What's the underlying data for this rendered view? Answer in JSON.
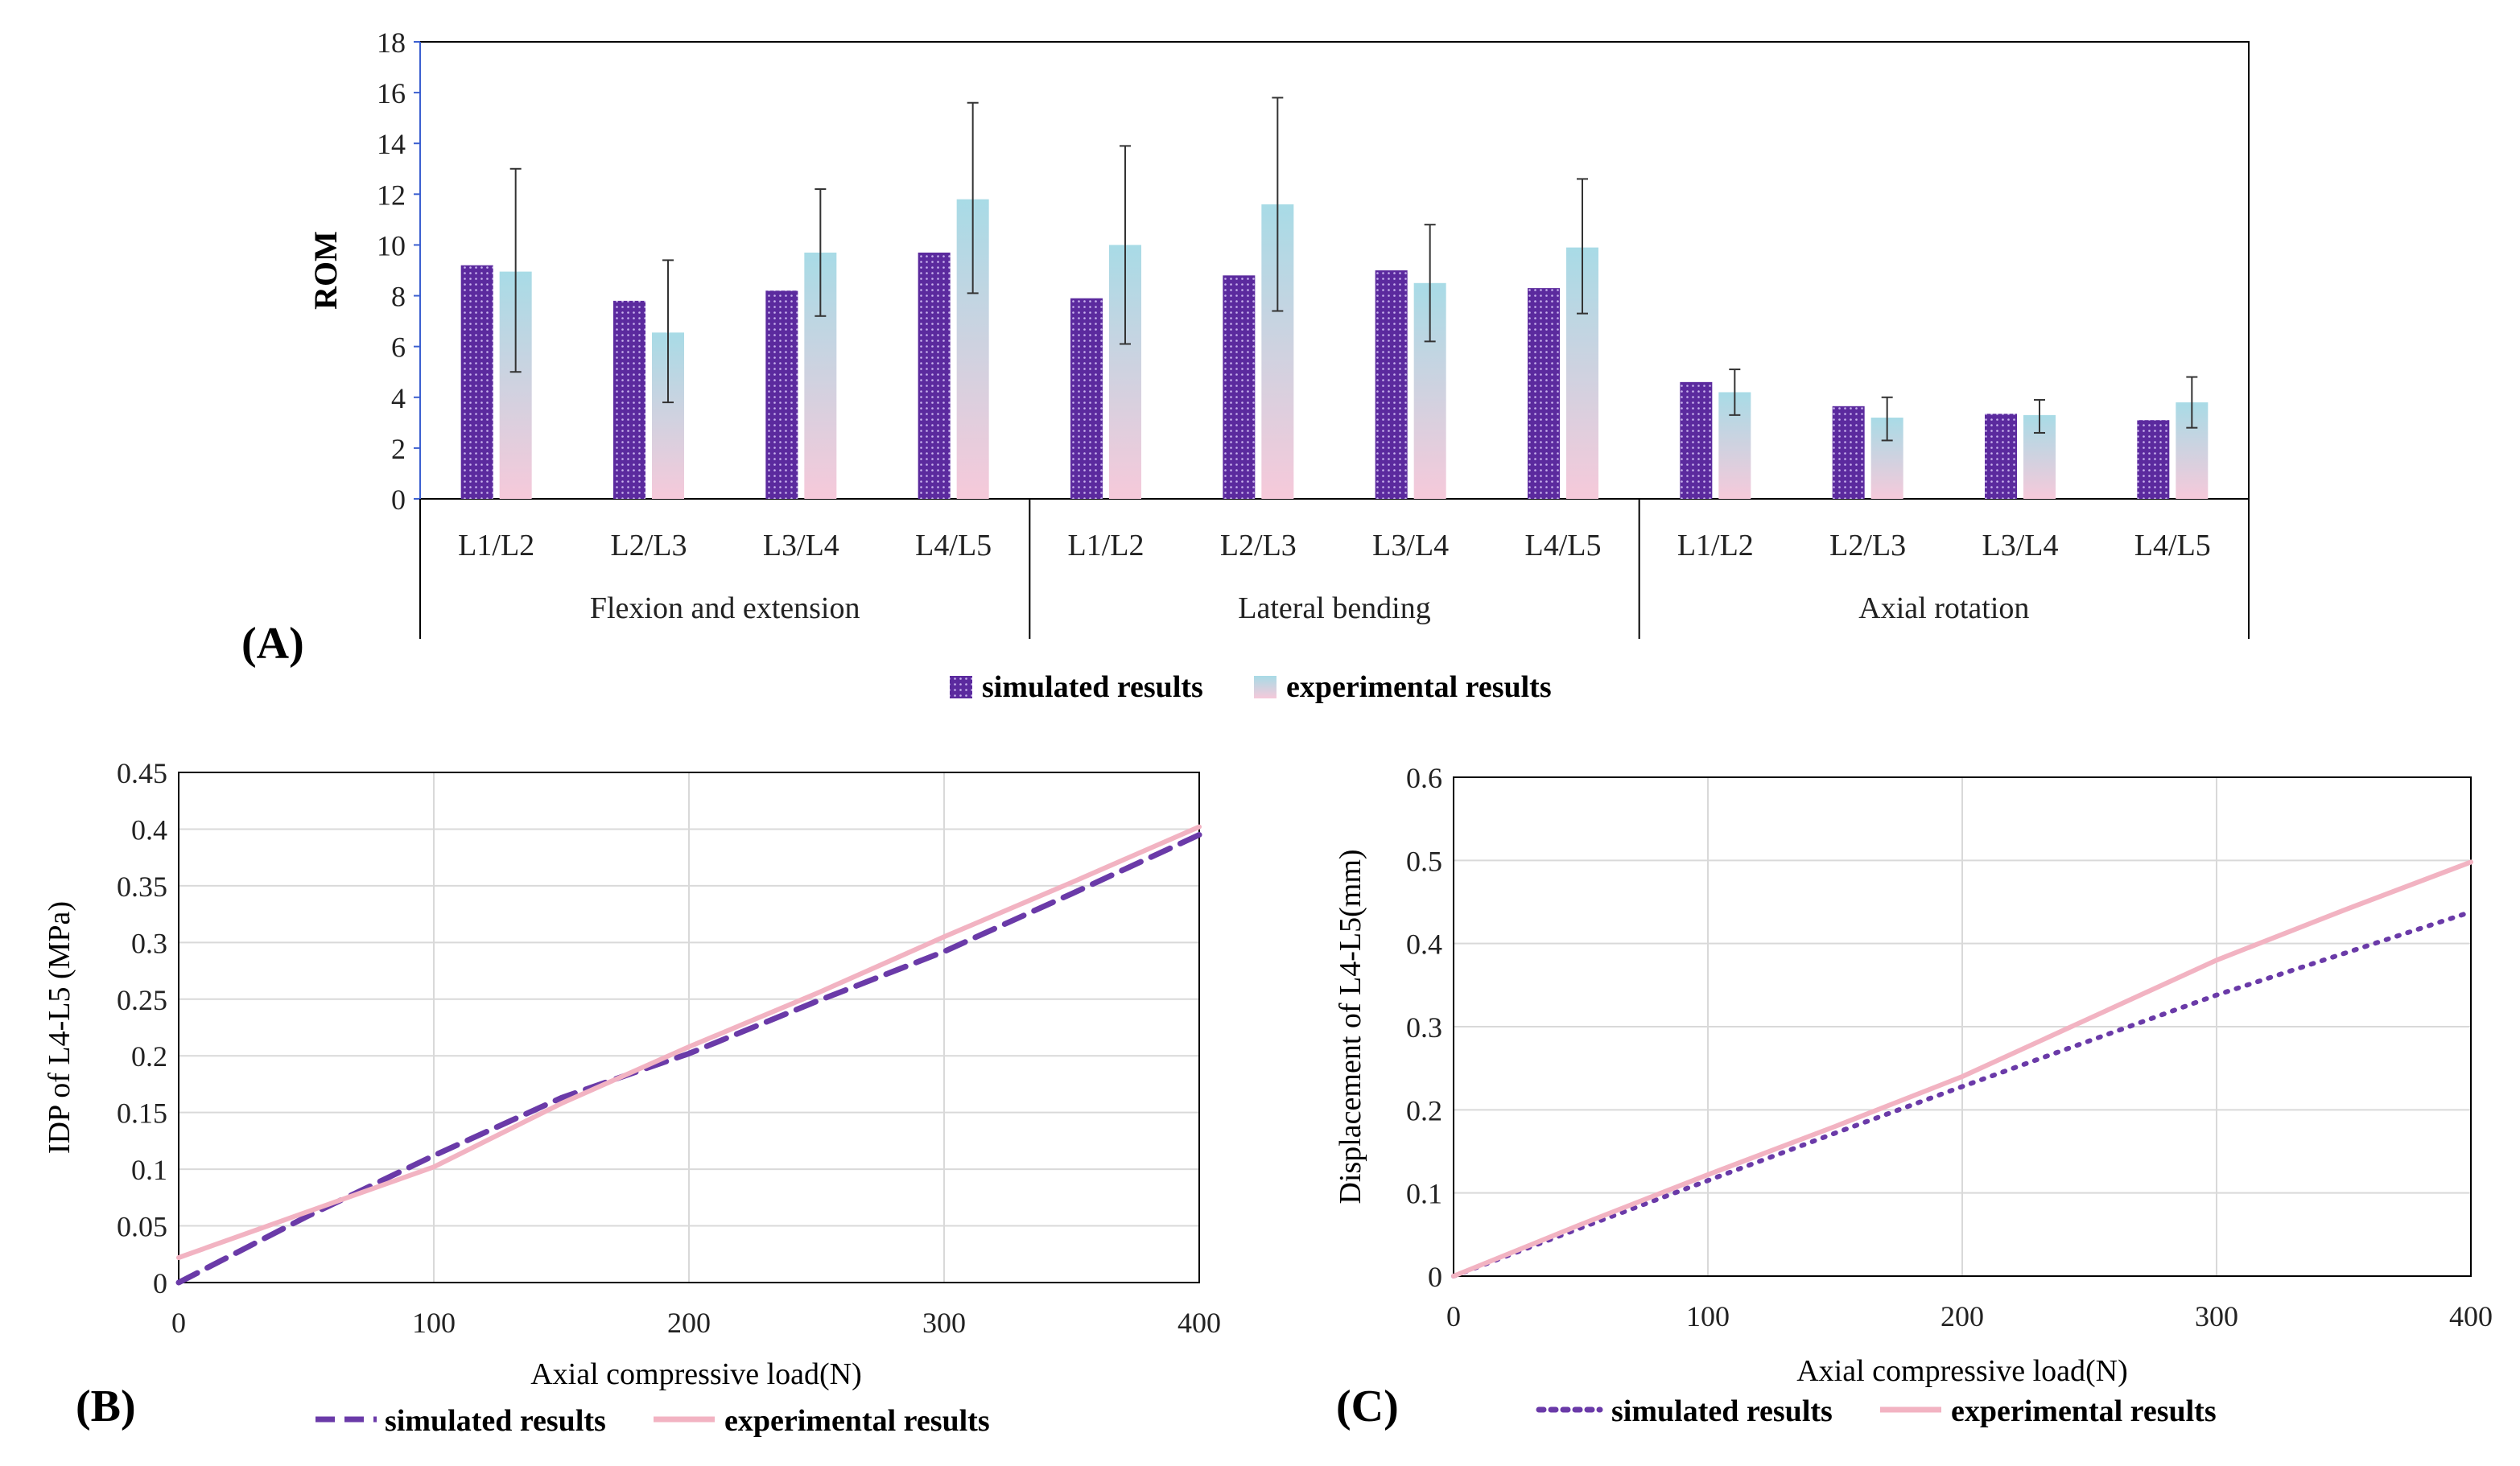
{
  "colors": {
    "simulated_bar": "#5b2a9e",
    "simulated_bar_dots": "#c9b3ee",
    "experimental_top": "#a8dbe6",
    "experimental_bottom": "#f6c9da",
    "simulated_line": "#6a3aa8",
    "experimental_line": "#f2b3c2",
    "axis": "#000000",
    "grid": "#d9d9d9",
    "axis_left_blue": "#3b5fd0"
  },
  "chart_data": [
    {
      "id": "A",
      "type": "bar",
      "panel_label": "(A)",
      "ylabel": "ROM",
      "ylim": [
        0,
        18
      ],
      "yticks": [
        "0",
        "2",
        "4",
        "6",
        "8",
        "10",
        "12",
        "14",
        "16",
        "18"
      ],
      "groups": [
        {
          "label": "Flexion and extension",
          "categories": [
            "L1/L2",
            "L2/L3",
            "L3/L4",
            "L4/L5"
          ]
        },
        {
          "label": "Lateral bending",
          "categories": [
            "L1/L2",
            "L2/L3",
            "L3/L4",
            "L4/L5"
          ]
        },
        {
          "label": "Axial rotation",
          "categories": [
            "L1/L2",
            "L2/L3",
            "L3/L4",
            "L4/L5"
          ]
        }
      ],
      "series": [
        {
          "name": "simulated results",
          "values": [
            9.2,
            7.8,
            8.2,
            9.7,
            7.9,
            8.8,
            9.0,
            8.3,
            4.6,
            3.65,
            3.35,
            3.1
          ]
        },
        {
          "name": "experimental results",
          "values": [
            8.95,
            6.55,
            9.7,
            11.8,
            10.0,
            11.6,
            8.5,
            9.9,
            4.2,
            3.2,
            3.3,
            3.8
          ],
          "error_low": [
            5.0,
            3.8,
            7.2,
            8.1,
            6.1,
            7.4,
            6.2,
            7.3,
            3.3,
            2.3,
            2.6,
            2.8
          ],
          "error_high": [
            13.0,
            9.4,
            12.2,
            15.6,
            13.9,
            15.8,
            10.8,
            12.6,
            5.1,
            4.0,
            3.9,
            4.8
          ]
        }
      ],
      "legend": "bottom"
    },
    {
      "id": "B",
      "type": "line",
      "panel_label": "(B)",
      "xlabel": "Axial compressive load(N)",
      "ylabel": "IDP of L4-L5 (MPa)",
      "xlim": [
        0,
        400
      ],
      "ylim": [
        0,
        0.45
      ],
      "xticks": [
        "0",
        "100",
        "200",
        "300",
        "400"
      ],
      "yticks": [
        "0",
        "0.05",
        "0.1",
        "0.15",
        "0.2",
        "0.25",
        "0.3",
        "0.35",
        "0.4",
        "0.45"
      ],
      "series": [
        {
          "name": "simulated results",
          "style": "dashed",
          "x": [
            0,
            50,
            100,
            150,
            200,
            250,
            300,
            350,
            400
          ],
          "y": [
            0.0,
            0.058,
            0.112,
            0.163,
            0.202,
            0.248,
            0.292,
            0.343,
            0.395
          ]
        },
        {
          "name": "experimental results",
          "style": "solid",
          "x": [
            0,
            50,
            100,
            150,
            200,
            250,
            300,
            350,
            400
          ],
          "y": [
            0.022,
            0.062,
            0.102,
            0.158,
            0.208,
            0.255,
            0.305,
            0.353,
            0.402
          ]
        }
      ],
      "legend": "bottom"
    },
    {
      "id": "C",
      "type": "line",
      "panel_label": "(C)",
      "xlabel": "Axial compressive load(N)",
      "ylabel": "Displacement of L4-L5(mm)",
      "xlim": [
        0,
        400
      ],
      "ylim": [
        0,
        0.6
      ],
      "xticks": [
        "0",
        "100",
        "200",
        "300",
        "400"
      ],
      "yticks": [
        "0",
        "0.1",
        "0.2",
        "0.3",
        "0.4",
        "0.5",
        "0.6"
      ],
      "series": [
        {
          "name": "simulated results",
          "style": "dotted",
          "x": [
            0,
            50,
            100,
            150,
            200,
            250,
            300,
            350,
            400
          ],
          "y": [
            0.0,
            0.058,
            0.115,
            0.172,
            0.228,
            0.283,
            0.338,
            0.388,
            0.438
          ]
        },
        {
          "name": "experimental results",
          "style": "solid",
          "x": [
            0,
            50,
            100,
            150,
            200,
            250,
            300,
            350,
            400
          ],
          "y": [
            0.0,
            0.062,
            0.122,
            0.18,
            0.24,
            0.31,
            0.38,
            0.44,
            0.498
          ]
        }
      ],
      "legend": "bottom"
    }
  ]
}
